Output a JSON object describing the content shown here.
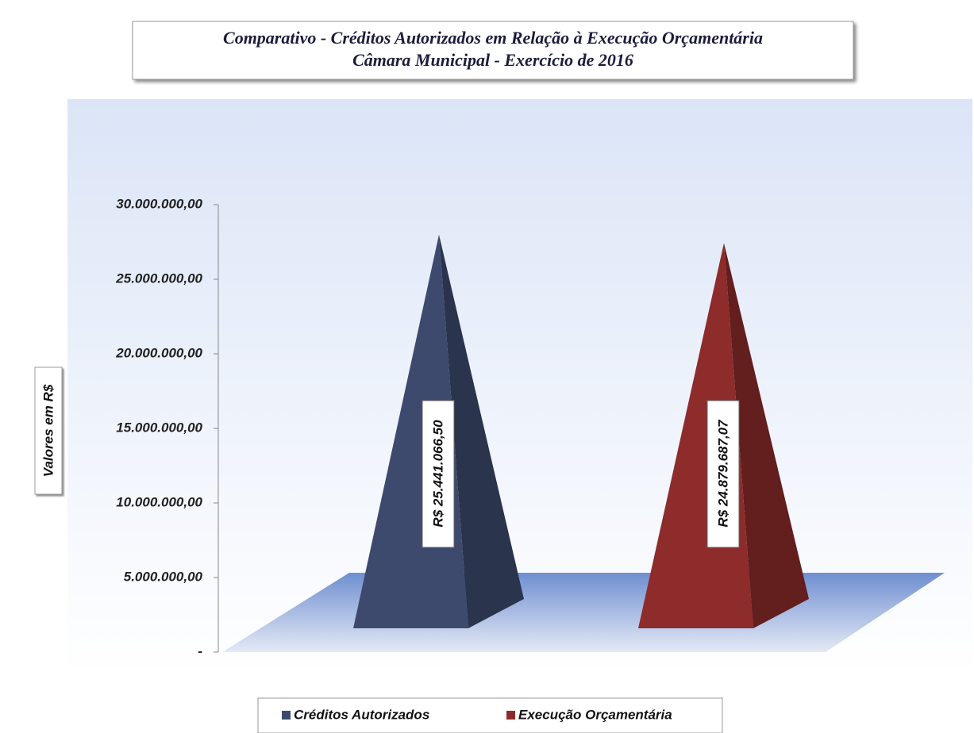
{
  "chart_data": {
    "type": "pyramid",
    "title": "Comparativo - Créditos Autorizados em Relação à Execução Orçamentária",
    "subtitle": "Câmara Municipal - Exercício de 2016",
    "y_label": "Valores em R$",
    "series": [
      {
        "name": "Créditos Autorizados",
        "color": "#3d4a6e",
        "values": [
          25441066.5
        ],
        "value_labels": [
          "R$ 25.441.066,50"
        ]
      },
      {
        "name": "Execução Orçamentária",
        "color": "#8e2b2b",
        "values": [
          24879687.07
        ],
        "value_labels": [
          "R$ 24.879.687,07"
        ]
      }
    ],
    "ylim": [
      0,
      30000000
    ],
    "yticks": [
      {
        "value": 0,
        "label": "-"
      },
      {
        "value": 5000000,
        "label": "5.000.000,00"
      },
      {
        "value": 10000000,
        "label": "10.000.000,00"
      },
      {
        "value": 15000000,
        "label": "15.000.000,00"
      },
      {
        "value": 20000000,
        "label": "20.000.000,00"
      },
      {
        "value": 25000000,
        "label": "25.000.000,00"
      },
      {
        "value": 30000000,
        "label": "30.000.000,00"
      }
    ],
    "legend": "bottom"
  }
}
